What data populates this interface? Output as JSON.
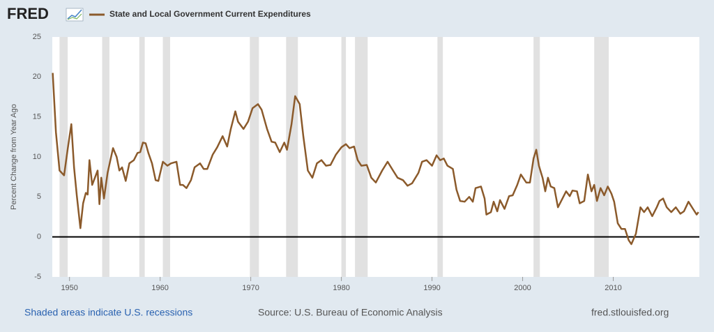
{
  "logo": "FRED",
  "chart_data": {
    "type": "line",
    "y_axis_label": "Percent Change from Year Ago",
    "note": "Shaded areas indicate U.S. recessions",
    "source": "Source: U.S. Bureau of Economic Analysis",
    "site": "fred.stlouisfed.org",
    "xlim": [
      1948.1,
      2019.5
    ],
    "xticks": [
      1950,
      1960,
      1970,
      1980,
      1990,
      2000,
      2010
    ],
    "ylim": [
      -5,
      25
    ],
    "yticks": [
      25,
      20,
      15,
      10,
      5,
      0,
      -5
    ],
    "grid": false,
    "zero_line": true,
    "recession_color": "#e1e1e1",
    "recessions": [
      [
        1948.9,
        1949.8
      ],
      [
        1953.6,
        1954.4
      ],
      [
        1957.7,
        1958.3
      ],
      [
        1960.3,
        1961.1
      ],
      [
        1969.9,
        1970.9
      ],
      [
        1973.9,
        1975.2
      ],
      [
        1980.0,
        1980.5
      ],
      [
        1981.5,
        1982.9
      ],
      [
        1990.6,
        1991.2
      ],
      [
        2001.2,
        2001.9
      ],
      [
        2007.9,
        2009.5
      ]
    ],
    "x": [
      1948.15,
      1948.5,
      1948.9,
      1949.4,
      1949.8,
      1950.2,
      1950.5,
      1950.8,
      1951.2,
      1951.5,
      1951.8,
      1952.0,
      1952.2,
      1952.5,
      1952.8,
      1953.1,
      1953.3,
      1953.5,
      1953.8,
      1954.2,
      1954.8,
      1955.2,
      1955.5,
      1955.8,
      1956.2,
      1956.6,
      1957.1,
      1957.5,
      1957.8,
      1958.1,
      1958.4,
      1958.7,
      1959.1,
      1959.5,
      1959.8,
      1960.3,
      1960.8,
      1961.2,
      1961.8,
      1962.2,
      1962.5,
      1962.9,
      1963.4,
      1963.8,
      1964.4,
      1964.8,
      1965.2,
      1965.8,
      1966.3,
      1966.9,
      1967.4,
      1967.8,
      1968.3,
      1968.6,
      1969.2,
      1969.7,
      1970.2,
      1970.8,
      1971.2,
      1971.8,
      1972.3,
      1972.7,
      1973.2,
      1973.7,
      1974.0,
      1974.5,
      1974.9,
      1975.4,
      1975.8,
      1976.3,
      1976.8,
      1977.3,
      1977.8,
      1978.3,
      1978.8,
      1979.4,
      1980.0,
      1980.5,
      1980.9,
      1981.4,
      1981.8,
      1982.2,
      1982.8,
      1983.3,
      1983.8,
      1984.5,
      1985.1,
      1985.7,
      1986.2,
      1986.8,
      1987.3,
      1987.8,
      1988.5,
      1988.9,
      1989.4,
      1990.0,
      1990.5,
      1990.9,
      1991.3,
      1991.7,
      1992.3,
      1992.7,
      1993.1,
      1993.6,
      1994.1,
      1994.5,
      1994.8,
      1995.4,
      1995.8,
      1996.0,
      1996.5,
      1996.8,
      1997.2,
      1997.5,
      1998.0,
      1998.5,
      1998.9,
      1999.4,
      1999.8,
      2000.4,
      2000.8,
      2001.2,
      2001.5,
      2001.8,
      2002.2,
      2002.5,
      2002.8,
      2003.1,
      2003.5,
      2003.9,
      2004.4,
      2004.8,
      2005.2,
      2005.5,
      2006.0,
      2006.3,
      2006.8,
      2007.2,
      2007.6,
      2007.9,
      2008.2,
      2008.6,
      2009.0,
      2009.4,
      2009.8,
      2010.1,
      2010.5,
      2010.9,
      2011.3,
      2011.7,
      2012.0,
      2012.5,
      2013.0,
      2013.4,
      2013.8,
      2014.3,
      2014.8,
      2015.1,
      2015.5,
      2015.9,
      2016.4,
      2016.9,
      2017.4,
      2017.8,
      2018.3,
      2018.8,
      2019.2,
      2019.4
    ],
    "series": [
      {
        "name": "State and Local Government Current Expenditures",
        "color": "#8b5a2b",
        "values": [
          20.5,
          13.1,
          8.3,
          7.7,
          11.0,
          14.1,
          8.7,
          5.2,
          1.1,
          4.2,
          5.5,
          5.3,
          9.6,
          6.5,
          7.4,
          8.3,
          4.1,
          7.4,
          4.8,
          8.0,
          11.1,
          10.0,
          8.3,
          8.7,
          7.0,
          9.2,
          9.6,
          10.5,
          10.6,
          11.8,
          11.7,
          10.5,
          9.2,
          7.1,
          7.0,
          9.4,
          8.9,
          9.2,
          9.4,
          6.5,
          6.5,
          6.1,
          7.1,
          8.7,
          9.2,
          8.5,
          8.5,
          10.3,
          11.2,
          12.6,
          11.3,
          13.5,
          15.7,
          14.4,
          13.5,
          14.4,
          16.1,
          16.6,
          15.9,
          13.5,
          11.9,
          11.8,
          10.6,
          11.8,
          10.9,
          14.1,
          17.6,
          16.6,
          12.6,
          8.3,
          7.4,
          9.2,
          9.6,
          8.9,
          9.0,
          10.3,
          11.2,
          11.6,
          11.1,
          11.3,
          9.6,
          8.9,
          9.0,
          7.4,
          6.8,
          8.3,
          9.4,
          8.3,
          7.4,
          7.1,
          6.4,
          6.7,
          8.0,
          9.4,
          9.6,
          8.9,
          10.2,
          9.6,
          9.8,
          8.9,
          8.5,
          5.9,
          4.5,
          4.4,
          5.0,
          4.4,
          6.1,
          6.3,
          4.8,
          2.8,
          3.1,
          4.4,
          3.2,
          4.6,
          3.5,
          5.1,
          5.2,
          6.5,
          7.8,
          6.8,
          6.8,
          9.8,
          10.9,
          8.9,
          7.4,
          5.7,
          7.4,
          6.3,
          6.1,
          3.7,
          4.8,
          5.7,
          5.1,
          5.8,
          5.7,
          4.2,
          4.5,
          7.8,
          5.7,
          6.5,
          4.5,
          6.1,
          5.2,
          6.3,
          5.4,
          4.4,
          1.7,
          1.0,
          1.0,
          -0.4,
          -0.9,
          0.4,
          3.7,
          3.1,
          3.7,
          2.6,
          3.7,
          4.5,
          4.8,
          3.7,
          3.1,
          3.7,
          2.9,
          3.2,
          4.4,
          3.5,
          2.8,
          3.1
        ]
      }
    ]
  }
}
